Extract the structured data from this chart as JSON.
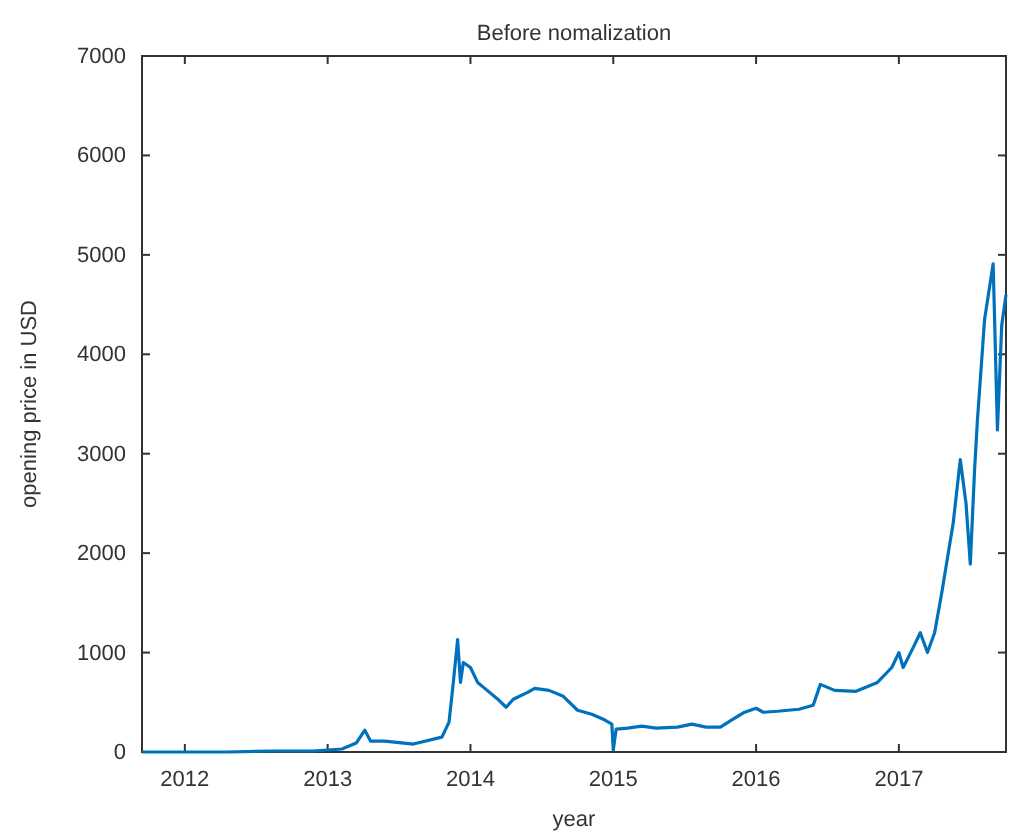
{
  "chart_data": {
    "type": "line",
    "title": "Before nomalization",
    "xlabel": "year",
    "ylabel": "opening price in USD",
    "xlim": [
      2011.7,
      2017.75
    ],
    "xticks": [
      2012,
      2013,
      2014,
      2015,
      2016,
      2017
    ],
    "ylim": [
      0,
      7000
    ],
    "yticks": [
      0,
      1000,
      2000,
      3000,
      4000,
      5000,
      6000,
      7000
    ],
    "series": [
      {
        "color": "#0072bd",
        "x": [
          2011.7,
          2012.0,
          2012.3,
          2012.6,
          2012.9,
          2013.1,
          2013.2,
          2013.26,
          2013.3,
          2013.4,
          2013.6,
          2013.8,
          2013.85,
          2013.88,
          2013.91,
          2013.93,
          2013.95,
          2014.0,
          2014.05,
          2014.1,
          2014.2,
          2014.25,
          2014.3,
          2014.4,
          2014.45,
          2014.55,
          2014.65,
          2014.75,
          2014.85,
          2014.93,
          2014.99,
          2015.0,
          2015.02,
          2015.1,
          2015.2,
          2015.3,
          2015.45,
          2015.55,
          2015.65,
          2015.75,
          2015.85,
          2015.92,
          2016.0,
          2016.05,
          2016.15,
          2016.3,
          2016.4,
          2016.45,
          2016.55,
          2016.7,
          2016.85,
          2016.95,
          2017.0,
          2017.03,
          2017.1,
          2017.15,
          2017.2,
          2017.25,
          2017.3,
          2017.38,
          2017.43,
          2017.47,
          2017.5,
          2017.53,
          2017.55,
          2017.6,
          2017.66,
          2017.69,
          2017.72,
          2017.75
        ],
        "values": [
          0,
          0,
          0,
          10,
          10,
          30,
          90,
          220,
          110,
          110,
          80,
          150,
          300,
          700,
          1130,
          700,
          900,
          850,
          700,
          640,
          520,
          450,
          530,
          600,
          640,
          620,
          560,
          420,
          380,
          330,
          280,
          20,
          230,
          240,
          260,
          240,
          250,
          280,
          250,
          250,
          340,
          400,
          440,
          400,
          410,
          430,
          470,
          680,
          620,
          610,
          700,
          850,
          1000,
          850,
          1050,
          1200,
          1000,
          1200,
          1600,
          2300,
          2940,
          2500,
          1890,
          2840,
          3340,
          4350,
          4910,
          3240,
          4290,
          4600
        ]
      }
    ]
  }
}
